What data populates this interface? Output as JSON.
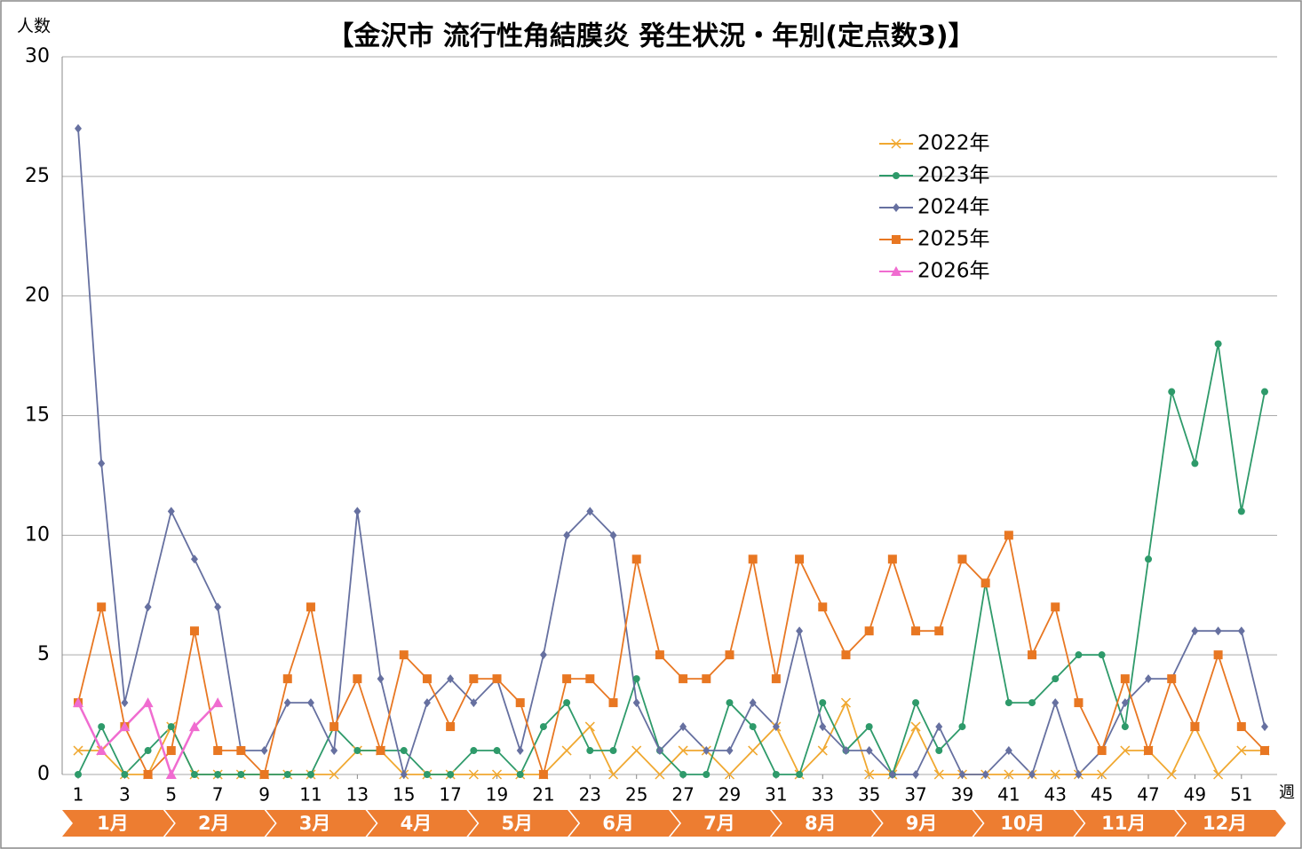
{
  "chart_data": {
    "type": "line",
    "title": "【金沢市 流行性角結膜炎 発生状況・年別(定点数3)】",
    "y_label": "人数",
    "x_label": "週",
    "x": [
      1,
      2,
      3,
      4,
      5,
      6,
      7,
      8,
      9,
      10,
      11,
      12,
      13,
      14,
      15,
      16,
      17,
      18,
      19,
      20,
      21,
      22,
      23,
      24,
      25,
      26,
      27,
      28,
      29,
      30,
      31,
      32,
      33,
      34,
      35,
      36,
      37,
      38,
      39,
      40,
      41,
      42,
      43,
      44,
      45,
      46,
      47,
      48,
      49,
      50,
      51,
      52
    ],
    "xlim": [
      1,
      52
    ],
    "xticks": [
      1,
      3,
      5,
      7,
      9,
      11,
      13,
      15,
      17,
      19,
      21,
      23,
      25,
      27,
      29,
      31,
      33,
      35,
      37,
      39,
      41,
      43,
      45,
      47,
      49,
      51
    ],
    "ylim": [
      0,
      30
    ],
    "yticks": [
      0,
      5,
      10,
      15,
      20,
      25,
      30
    ],
    "grid": true,
    "legend": "upper right",
    "months": [
      "1月",
      "2月",
      "3月",
      "4月",
      "5月",
      "6月",
      "7月",
      "8月",
      "9月",
      "10月",
      "11月",
      "12月"
    ],
    "series": [
      {
        "name": "2022年",
        "color": "#f0a830",
        "marker": "x",
        "values": [
          1,
          1,
          0,
          0,
          2,
          0,
          0,
          0,
          0,
          0,
          0,
          0,
          1,
          1,
          0,
          0,
          0,
          0,
          0,
          0,
          0,
          1,
          2,
          0,
          1,
          0,
          1,
          1,
          0,
          1,
          2,
          0,
          1,
          3,
          0,
          0,
          2,
          0,
          0,
          0,
          0,
          0,
          0,
          0,
          0,
          1,
          1,
          0,
          2,
          0,
          1,
          1
        ]
      },
      {
        "name": "2023年",
        "color": "#2e9a6a",
        "marker": "circle",
        "values": [
          0,
          2,
          0,
          1,
          2,
          0,
          0,
          0,
          0,
          0,
          0,
          2,
          1,
          1,
          1,
          0,
          0,
          1,
          1,
          0,
          2,
          3,
          1,
          1,
          4,
          1,
          0,
          0,
          3,
          2,
          0,
          0,
          3,
          1,
          2,
          0,
          3,
          1,
          2,
          8,
          3,
          3,
          4,
          5,
          5,
          2,
          9,
          16,
          13,
          18,
          11,
          16
        ]
      },
      {
        "name": "2024年",
        "color": "#6670a0",
        "marker": "diamond",
        "values": [
          27,
          13,
          3,
          7,
          11,
          9,
          7,
          1,
          1,
          3,
          3,
          1,
          11,
          4,
          0,
          3,
          4,
          3,
          4,
          1,
          5,
          10,
          11,
          10,
          3,
          1,
          2,
          1,
          1,
          3,
          2,
          6,
          2,
          1,
          1,
          0,
          0,
          2,
          0,
          0,
          1,
          0,
          3,
          0,
          1,
          3,
          4,
          4,
          6,
          6,
          6,
          2
        ]
      },
      {
        "name": "2025年",
        "color": "#e87722",
        "marker": "square",
        "values": [
          3,
          7,
          2,
          0,
          1,
          6,
          1,
          1,
          0,
          4,
          7,
          2,
          4,
          1,
          5,
          4,
          2,
          4,
          4,
          3,
          0,
          4,
          4,
          3,
          9,
          5,
          4,
          4,
          5,
          9,
          4,
          9,
          7,
          5,
          6,
          9,
          6,
          6,
          9,
          8,
          10,
          5,
          7,
          3,
          1,
          4,
          1,
          4,
          2,
          5,
          2,
          1
        ]
      },
      {
        "name": "2026年",
        "color": "#f06cd0",
        "marker": "triangle",
        "values": [
          3,
          1,
          2,
          3,
          0,
          2,
          3,
          null,
          null,
          null,
          null,
          null,
          null,
          null,
          null,
          null,
          null,
          null,
          null,
          null,
          null,
          null,
          null,
          null,
          null,
          null,
          null,
          null,
          null,
          null,
          null,
          null,
          null,
          null,
          null,
          null,
          null,
          null,
          null,
          null,
          null,
          null,
          null,
          null,
          null,
          null,
          null,
          null,
          null,
          null,
          null,
          null
        ]
      }
    ]
  }
}
